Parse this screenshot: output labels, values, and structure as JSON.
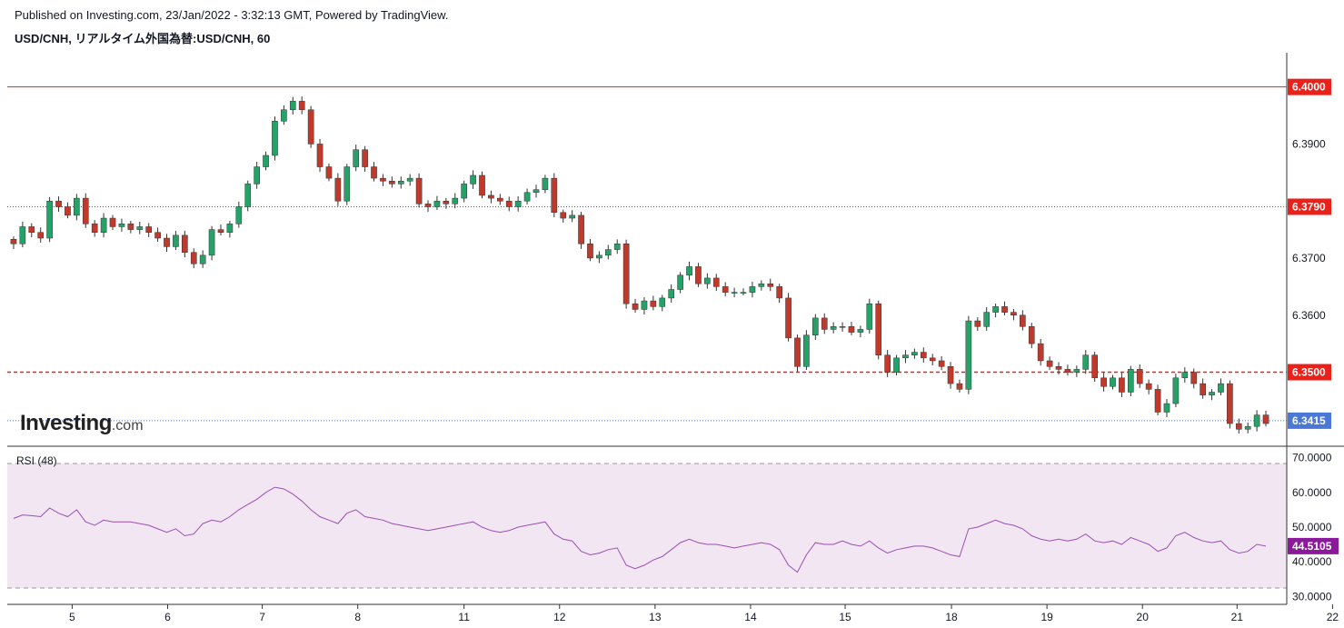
{
  "header": {
    "published": "Published on Investing.com, 23/Jan/2022 - 3:32:13 GMT, Powered by TradingView.",
    "symbol": "USD/CNH, リアルタイム外国為替:USD/CNH, 60"
  },
  "logo": {
    "main": "Investing",
    "suffix": ".com"
  },
  "colors": {
    "up": "#26a269",
    "down": "#c0392b",
    "resistance": "#e8211b",
    "current": "#4a78d4",
    "rsi_line": "#9b4fb4",
    "rsi_fill": "#f2e6f3",
    "rsi_badge": "#8b1a9b"
  },
  "chart_data": [
    {
      "type": "candlestick",
      "title": "USD/CNH, リアルタイム外国為替:USD/CNH, 60",
      "ylim": [
        6.3375,
        6.406
      ],
      "y_ticks": [
        "6.3900",
        "6.3700",
        "6.3600"
      ],
      "x_ticks": [
        {
          "label": "5",
          "t": 6.5
        },
        {
          "label": "6",
          "t": 17.1
        },
        {
          "label": "7",
          "t": 27.6
        },
        {
          "label": "8",
          "t": 38.2
        },
        {
          "label": "11",
          "t": 50.0
        },
        {
          "label": "12",
          "t": 60.6
        },
        {
          "label": "13",
          "t": 71.2
        },
        {
          "label": "14",
          "t": 81.8
        },
        {
          "label": "15",
          "t": 92.3
        },
        {
          "label": "18",
          "t": 104.1
        },
        {
          "label": "19",
          "t": 114.7
        },
        {
          "label": "20",
          "t": 125.3
        },
        {
          "label": "21",
          "t": 135.8
        },
        {
          "label": "22",
          "t": 146.4
        }
      ],
      "horizontal_lines": [
        {
          "value": 6.4,
          "label": "6.4000",
          "style": "solid",
          "color": "#e8211b"
        },
        {
          "value": 6.379,
          "label": "6.3790",
          "style": "dotted",
          "color": "#e8211b"
        },
        {
          "value": 6.35,
          "label": "6.3500",
          "style": "dashed",
          "color": "#e8211b"
        },
        {
          "value": 6.3415,
          "label": "6.3415",
          "style": "dotted",
          "color": "#4a78d4"
        }
      ],
      "closes": [
        6.3725,
        6.3755,
        6.3745,
        6.3735,
        6.38,
        6.379,
        6.3775,
        6.3805,
        6.376,
        6.3745,
        6.377,
        6.3755,
        6.376,
        6.375,
        6.3755,
        6.3745,
        6.3735,
        6.372,
        6.374,
        6.371,
        6.369,
        6.3705,
        6.375,
        6.3745,
        6.376,
        6.379,
        6.383,
        6.386,
        6.388,
        6.394,
        6.396,
        6.3975,
        6.396,
        6.39,
        6.386,
        6.384,
        6.38,
        6.386,
        6.389,
        6.386,
        6.384,
        6.3835,
        6.383,
        6.3835,
        6.384,
        6.3795,
        6.379,
        6.38,
        6.3795,
        6.3805,
        6.383,
        6.3845,
        6.381,
        6.3805,
        6.38,
        6.379,
        6.38,
        6.3815,
        6.382,
        6.384,
        6.378,
        6.377,
        6.3775,
        6.3725,
        6.37,
        6.3705,
        6.3715,
        6.3725,
        6.362,
        6.361,
        6.3625,
        6.3615,
        6.363,
        6.3645,
        6.367,
        6.3685,
        6.3655,
        6.3665,
        6.365,
        6.364,
        6.364,
        6.364,
        6.365,
        6.3655,
        6.365,
        6.363,
        6.356,
        6.351,
        6.3565,
        6.3595,
        6.3575,
        6.358,
        6.358,
        6.357,
        6.3575,
        6.362,
        6.353,
        6.35,
        6.3525,
        6.353,
        6.3535,
        6.3525,
        6.352,
        6.351,
        6.348,
        6.347,
        6.359,
        6.358,
        6.3605,
        6.3615,
        6.3605,
        6.36,
        6.358,
        6.355,
        6.352,
        6.351,
        6.3505,
        6.35,
        6.3505,
        6.353,
        6.349,
        6.3475,
        6.349,
        6.3465,
        6.3505,
        6.348,
        6.347,
        6.343,
        6.3445,
        6.349,
        6.35,
        6.348,
        6.346,
        6.3465,
        6.348,
        6.341,
        6.34,
        6.3405,
        6.3425,
        6.341
      ]
    },
    {
      "type": "line",
      "title": "RSI (48)",
      "ylim": [
        28.5,
        72.0
      ],
      "y_ticks": [
        "70.0000",
        "60.0000",
        "50.0000",
        "40.0000",
        "30.0000"
      ],
      "overbought": 70,
      "oversold": 30,
      "current_value": "44.5105",
      "values": [
        52.5,
        53.5,
        53.3,
        53.0,
        55.5,
        54.0,
        53.0,
        55.0,
        51.5,
        50.5,
        52.0,
        51.5,
        51.5,
        51.5,
        51.0,
        50.5,
        49.5,
        48.5,
        49.5,
        47.5,
        48.0,
        51.0,
        52.0,
        51.5,
        53.0,
        55.0,
        56.5,
        58.0,
        60.0,
        61.5,
        61.0,
        59.5,
        57.5,
        55.0,
        53.0,
        52.0,
        51.0,
        54.0,
        55.0,
        53.0,
        52.5,
        52.0,
        51.0,
        50.5,
        50.0,
        49.5,
        49.0,
        49.5,
        50.0,
        50.5,
        51.0,
        51.5,
        50.0,
        49.0,
        48.5,
        49.0,
        50.0,
        50.5,
        51.0,
        51.5,
        48.0,
        46.5,
        46.0,
        43.0,
        42.0,
        42.5,
        43.5,
        44.0,
        39.0,
        38.0,
        39.0,
        40.5,
        41.5,
        43.5,
        45.5,
        46.5,
        45.5,
        45.0,
        45.0,
        44.5,
        44.0,
        44.5,
        45.0,
        45.5,
        45.0,
        43.5,
        39.0,
        37.0,
        42.0,
        45.5,
        45.0,
        45.0,
        46.0,
        45.0,
        44.5,
        46.0,
        44.0,
        42.5,
        43.5,
        44.0,
        44.5,
        44.5,
        44.0,
        43.0,
        42.0,
        41.5,
        49.5,
        50.0,
        51.0,
        52.0,
        51.0,
        50.5,
        49.5,
        47.5,
        46.5,
        46.0,
        46.5,
        46.0,
        46.5,
        48.0,
        46.0,
        45.5,
        46.0,
        45.0,
        47.0,
        46.0,
        45.0,
        43.0,
        44.0,
        47.5,
        48.5,
        47.0,
        46.0,
        45.5,
        46.0,
        43.5,
        42.5,
        43.0,
        45.0,
        44.5
      ]
    }
  ]
}
